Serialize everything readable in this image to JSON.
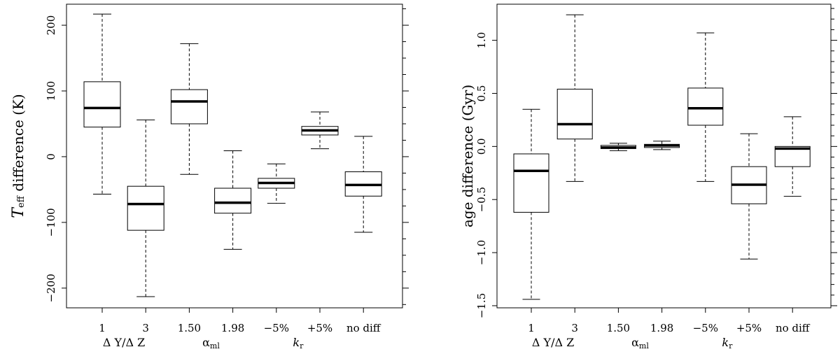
{
  "chart_data": [
    {
      "type": "boxplot",
      "ylabel_main": "T",
      "ylabel_sub": "eff",
      "ylabel_rest": "difference (K)",
      "ylim": [
        -230,
        232
      ],
      "yticks": [
        -200,
        -100,
        0,
        100,
        200
      ],
      "ytick_labels": [
        "−200",
        "−100",
        "0",
        "100",
        "200"
      ],
      "yminor": [
        -225,
        -175,
        -150,
        -125,
        -75,
        -50,
        -25,
        25,
        50,
        75,
        125,
        150,
        175,
        225
      ],
      "categories": [
        "1",
        "3",
        "1.50",
        "1.98",
        "−5%",
        "+5%",
        "no diff"
      ],
      "groups": [
        {
          "main": "Δ Y/Δ Z",
          "sub": "",
          "italic": false,
          "span": [
            0,
            1
          ]
        },
        {
          "main": "α",
          "sub": "ml",
          "italic": false,
          "span": [
            2,
            3
          ]
        },
        {
          "main": "k",
          "sub": "r",
          "italic": true,
          "span": [
            4,
            5
          ]
        }
      ],
      "boxes": [
        {
          "min": -57,
          "q1": 45,
          "median": 74,
          "q3": 114,
          "max": 217
        },
        {
          "min": -213,
          "q1": -112,
          "median": -72,
          "q3": -45,
          "max": 56
        },
        {
          "min": -27,
          "q1": 50,
          "median": 84,
          "q3": 102,
          "max": 172
        },
        {
          "min": -141,
          "q1": -86,
          "median": -70,
          "q3": -48,
          "max": 9
        },
        {
          "min": -71,
          "q1": -48,
          "median": -40,
          "q3": -33,
          "max": -11
        },
        {
          "min": 12,
          "q1": 33,
          "median": 40,
          "q3": 46,
          "max": 68
        },
        {
          "min": -115,
          "q1": -60,
          "median": -43,
          "q3": -23,
          "max": 31
        }
      ]
    },
    {
      "type": "boxplot",
      "ylabel_main": "age difference (Gyr)",
      "ylim": [
        -1.52,
        1.34
      ],
      "yticks": [
        -1.5,
        -1.0,
        -0.5,
        0.0,
        0.5,
        1.0
      ],
      "ytick_labels": [
        "−1.5",
        "−1.0",
        "−0.5",
        "0.0",
        "0.5",
        "1.0"
      ],
      "yminor": [
        -1.4,
        -1.3,
        -1.2,
        -1.1,
        -0.9,
        -0.8,
        -0.7,
        -0.6,
        -0.4,
        -0.3,
        -0.2,
        -0.1,
        0.1,
        0.2,
        0.3,
        0.4,
        0.6,
        0.7,
        0.8,
        0.9,
        1.1,
        1.2,
        1.3
      ],
      "categories": [
        "1",
        "3",
        "1.50",
        "1.98",
        "−5%",
        "+5%",
        "no diff"
      ],
      "groups": [
        {
          "main": "Δ Y/Δ Z",
          "sub": "",
          "italic": false,
          "span": [
            0,
            1
          ]
        },
        {
          "main": "α",
          "sub": "ml",
          "italic": false,
          "span": [
            2,
            3
          ]
        },
        {
          "main": "k",
          "sub": "r",
          "italic": true,
          "span": [
            4,
            5
          ]
        }
      ],
      "boxes": [
        {
          "min": -1.44,
          "q1": -0.62,
          "median": -0.23,
          "q3": -0.07,
          "max": 0.35
        },
        {
          "min": -0.33,
          "q1": 0.07,
          "median": 0.21,
          "q3": 0.54,
          "max": 1.24
        },
        {
          "min": -0.04,
          "q1": -0.02,
          "median": -0.01,
          "q3": 0.01,
          "max": 0.03
        },
        {
          "min": -0.03,
          "q1": -0.01,
          "median": 0.01,
          "q3": 0.02,
          "max": 0.05
        },
        {
          "min": -0.33,
          "q1": 0.2,
          "median": 0.36,
          "q3": 0.55,
          "max": 1.07
        },
        {
          "min": -1.06,
          "q1": -0.54,
          "median": -0.36,
          "q3": -0.19,
          "max": 0.12
        },
        {
          "min": -0.47,
          "q1": -0.19,
          "median": -0.02,
          "q3": 0.0,
          "max": 0.28
        }
      ]
    }
  ]
}
